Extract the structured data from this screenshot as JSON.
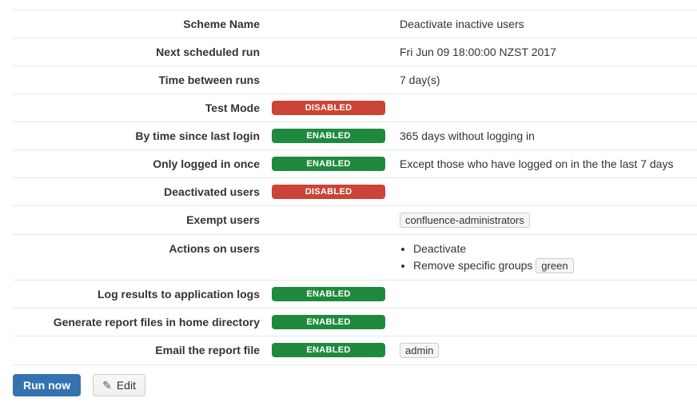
{
  "table": {
    "rows": [
      {
        "label": "Scheme Name",
        "badge": null,
        "value_text": "Deactivate inactive users"
      },
      {
        "label": "Next scheduled run",
        "badge": null,
        "value_text": "Fri Jun 09 18:00:00 NZST 2017"
      },
      {
        "label": "Time between runs",
        "badge": null,
        "value_text": "7 day(s)"
      },
      {
        "label": "Test Mode",
        "badge": "DISABLED"
      },
      {
        "label": "By time since last login",
        "badge": "ENABLED",
        "value_text": "365 days without logging in"
      },
      {
        "label": "Only logged in once",
        "badge": "ENABLED",
        "value_text": "Except those who have logged on in the the last 7 days"
      },
      {
        "label": "Deactivated users",
        "badge": "DISABLED"
      },
      {
        "label": "Exempt users",
        "badge": null,
        "value_chips": [
          "confluence-administrators"
        ]
      },
      {
        "label": "Actions on users",
        "badge": null,
        "value_list": [
          {
            "text": "Deactivate",
            "chip": null
          },
          {
            "text": "Remove specific groups",
            "chip": "green"
          }
        ]
      },
      {
        "label": "Log results to application logs",
        "badge": "ENABLED"
      },
      {
        "label": "Generate report files in home directory",
        "badge": "ENABLED"
      },
      {
        "label": "Email the report file",
        "badge": "ENABLED",
        "value_chips": [
          "admin"
        ]
      }
    ]
  },
  "buttons": {
    "run_now": "Run now",
    "edit": "Edit"
  },
  "icons": {
    "pencil_glyph": "✎"
  },
  "colors": {
    "enabled_badge": "#1f8a3d",
    "disabled_badge": "#cc4437",
    "primary_button": "#3572b0",
    "divider": "#e8e8e8",
    "chip_background": "#f5f5f5",
    "chip_border": "#cccccc",
    "text": "#333333"
  }
}
